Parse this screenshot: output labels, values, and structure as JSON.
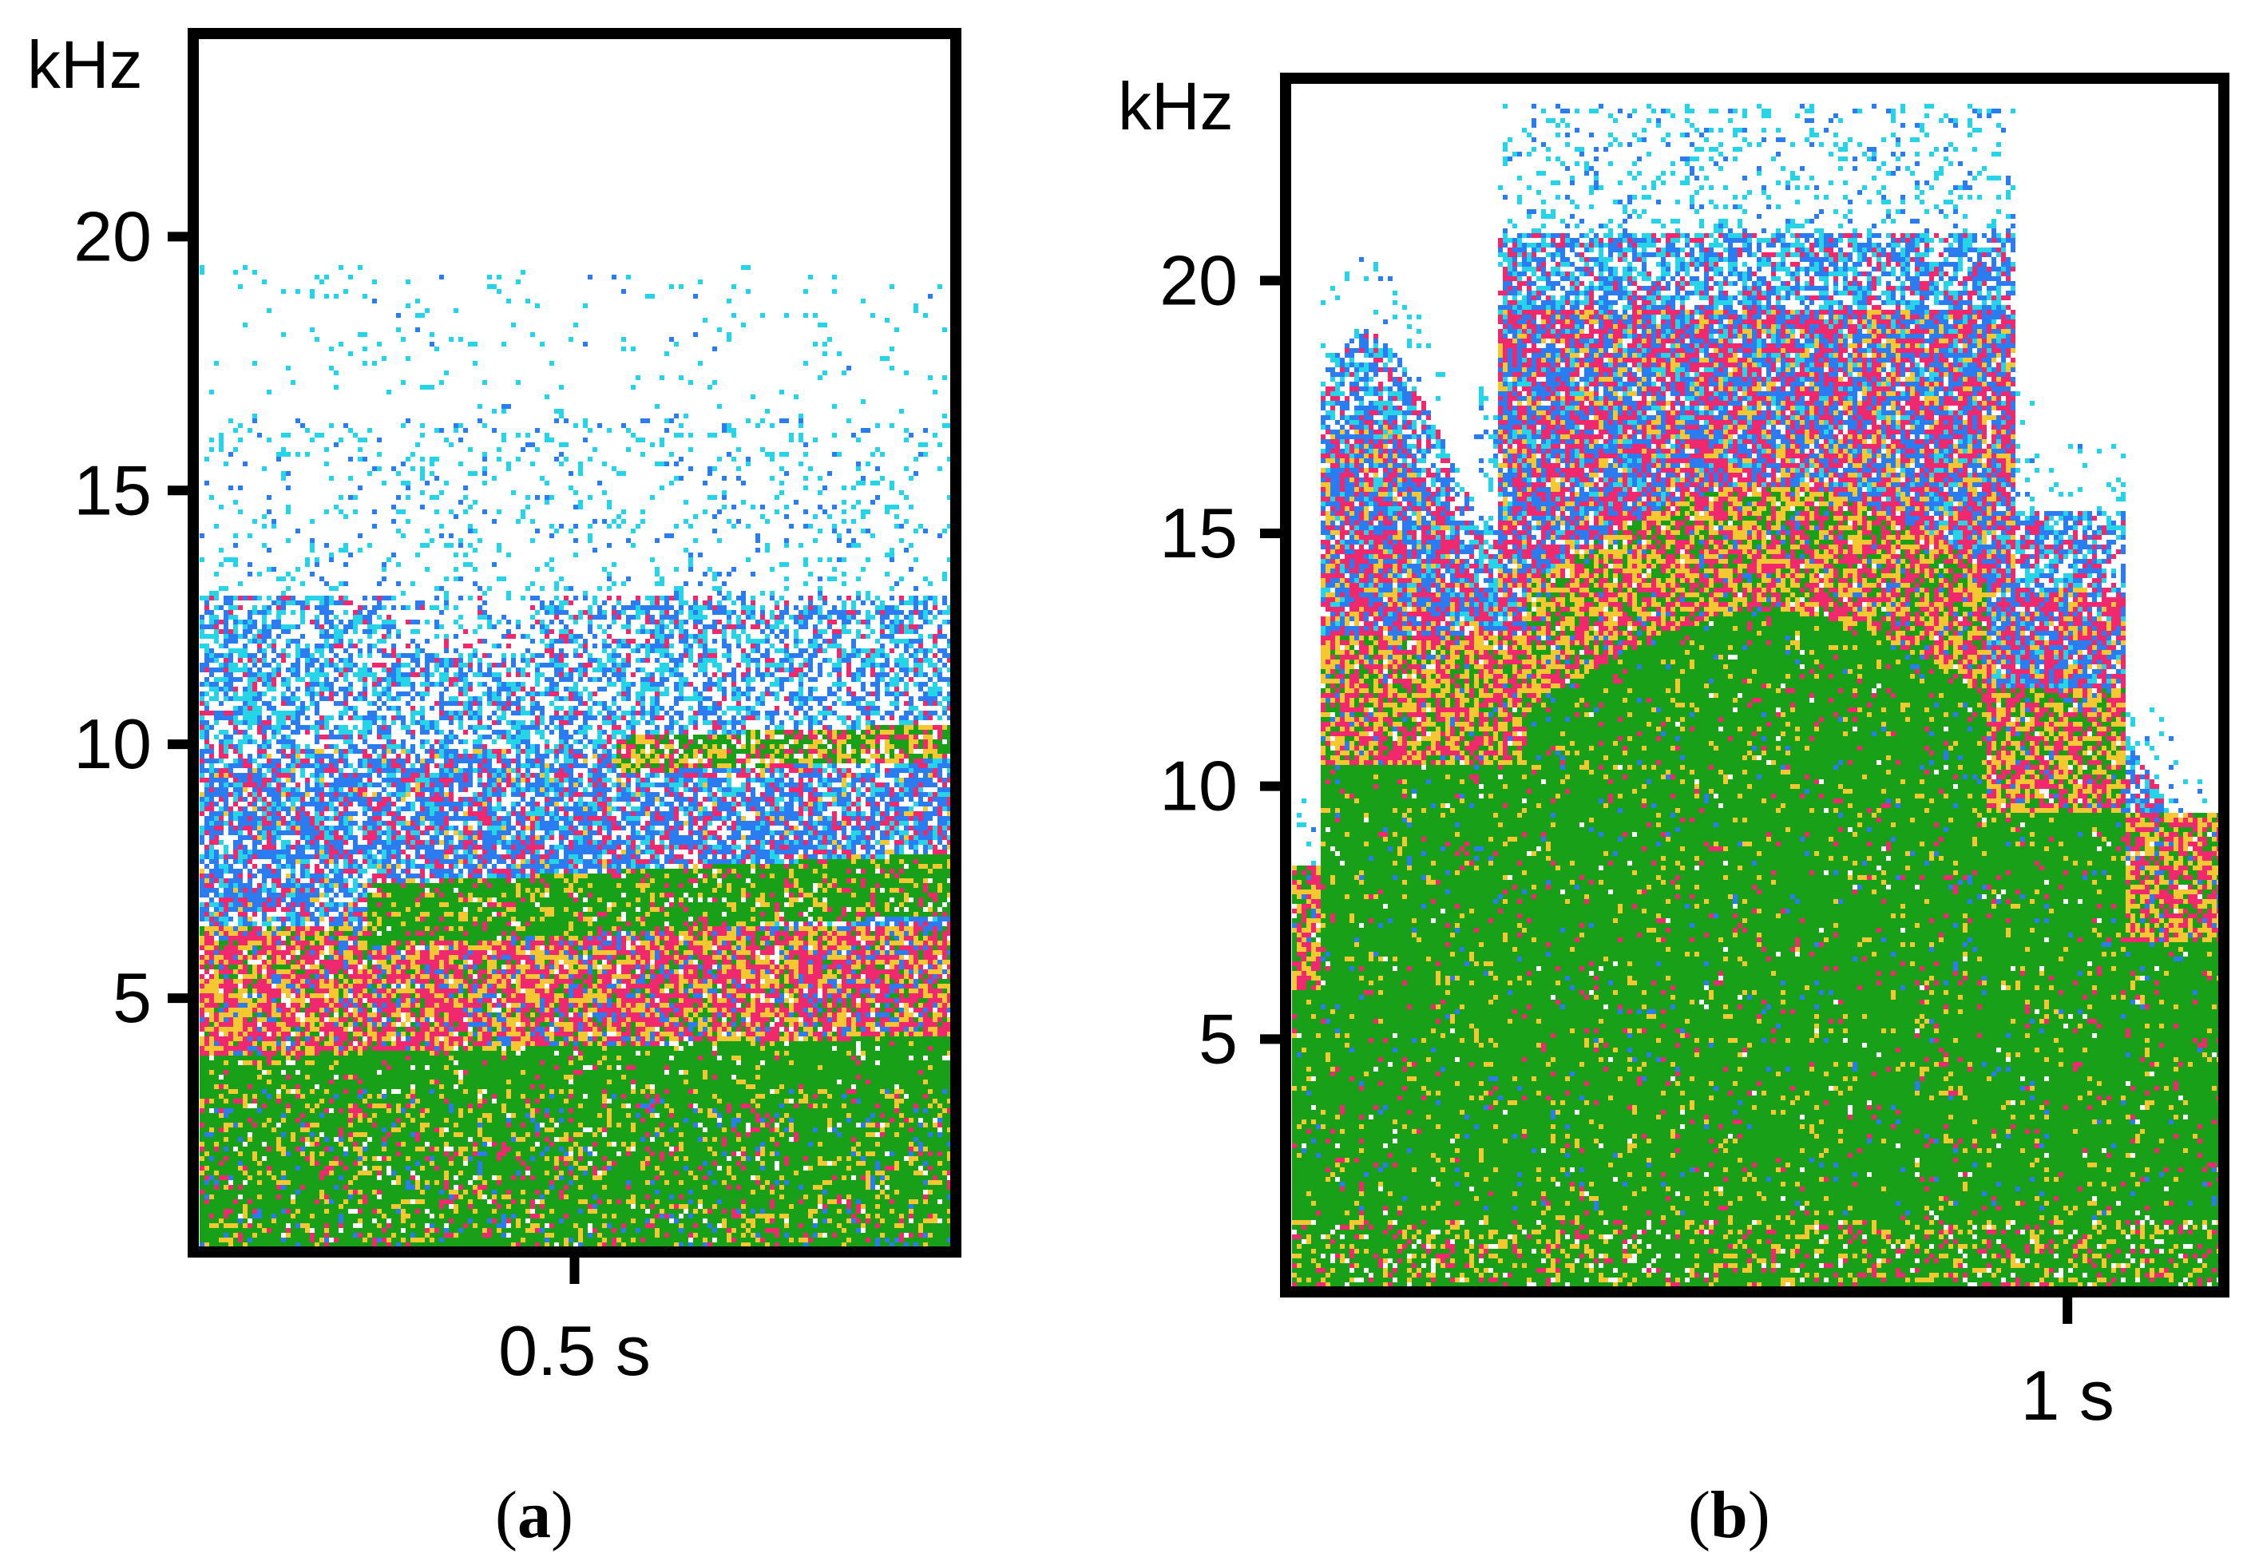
{
  "figure": {
    "captions": [
      {
        "open": "(",
        "letter": "a",
        "close": ")"
      },
      {
        "open": "(",
        "letter": "b",
        "close": ")"
      }
    ]
  },
  "palette": {
    "background": "#ffffff",
    "frame": "#000000",
    "levels": [
      "#26d4e8",
      "#2a7cf0",
      "#f0286e",
      "#f5c832",
      "#18a018"
    ]
  },
  "chart_data": [
    {
      "type": "heatmap",
      "panel": "a",
      "title": "",
      "ylabel": "kHz",
      "yticks": [
        {
          "value": 5,
          "label": "5"
        },
        {
          "value": 10,
          "label": "10"
        },
        {
          "value": 15,
          "label": "15"
        },
        {
          "value": 20,
          "label": "20"
        }
      ],
      "ylim": [
        0,
        24
      ],
      "xlim": [
        0,
        1.0
      ],
      "xticks": [
        {
          "value": 0.5,
          "label": "0.5 s"
        }
      ],
      "level_legend": "none",
      "bands": [
        {
          "from_khz": 0,
          "to_khz": 3.3,
          "dominant": "green"
        },
        {
          "from_khz": 3.3,
          "to_khz": 6.5,
          "dominant": "red-yellow"
        },
        {
          "from_khz": 6.5,
          "to_khz": 10,
          "dominant": "blue-red"
        },
        {
          "from_khz": 10,
          "to_khz": 13,
          "dominant": "blue-cyan"
        },
        {
          "from_khz": 13,
          "to_khz": 19.5,
          "dominant": "sparse cyan"
        }
      ]
    },
    {
      "type": "heatmap",
      "panel": "b",
      "title": "",
      "ylabel": "kHz",
      "yticks": [
        {
          "value": 5,
          "label": "5"
        },
        {
          "value": 10,
          "label": "10"
        },
        {
          "value": 15,
          "label": "15"
        },
        {
          "value": 20,
          "label": "20"
        }
      ],
      "ylim": [
        0,
        24
      ],
      "xlim": [
        0,
        1.2
      ],
      "xticks": [
        {
          "value": 1.0,
          "label": "1 s"
        }
      ],
      "level_legend": "none",
      "bands": [
        {
          "from_khz": 0,
          "to_khz": 11.5,
          "dominant": "green"
        },
        {
          "from_khz": 11.5,
          "to_khz": 15.5,
          "dominant": "yellow-red"
        },
        {
          "from_khz": 15.5,
          "to_khz": 21,
          "dominant": "red-blue"
        },
        {
          "from_khz": 21,
          "to_khz": 23.5,
          "dominant": "sparse cyan-blue"
        }
      ]
    }
  ]
}
